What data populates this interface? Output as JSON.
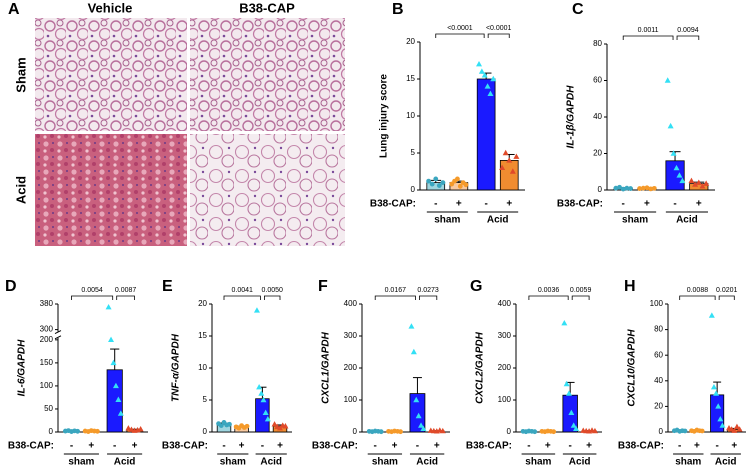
{
  "panel_a": {
    "label": "A",
    "columns": [
      "Vehicle",
      "B38-CAP"
    ],
    "rows": [
      "Sham",
      "Acid"
    ]
  },
  "chart_data": [
    {
      "type": "bar",
      "label": "B",
      "ylabel": "Lung injury score",
      "ylabel_italic": false,
      "xlabel": "B38-CAP:",
      "categories": [
        "-",
        "+",
        "-",
        "+"
      ],
      "groups": [
        "sham",
        "Acid"
      ],
      "values": [
        1,
        1,
        15,
        4
      ],
      "errors": [
        0.3,
        0.2,
        0.8,
        0.8
      ],
      "points": [
        [
          1.2,
          0.8,
          1.5,
          0.6,
          1.0
        ],
        [
          0.8,
          1.2,
          1.5,
          0.5,
          1.0,
          0.7
        ],
        [
          17,
          16,
          15.5,
          14,
          13,
          15
        ],
        [
          3,
          5,
          4,
          2.5,
          4.5
        ]
      ],
      "pvalues": [
        "<0.0001",
        "<0.0001"
      ],
      "colors": [
        "#9fd6e0",
        "#f8c9a0",
        "#1a1aff",
        "#f08c30"
      ],
      "point_colors": [
        "#3aa6bf",
        "#f59a2a",
        "#33e0f5",
        "#e04a2a"
      ],
      "markers": [
        "circle",
        "circle",
        "triangle",
        "triangle"
      ],
      "ylim": [
        0,
        20
      ],
      "yticks": [
        0,
        5,
        10,
        15,
        20
      ]
    },
    {
      "type": "bar",
      "label": "C",
      "ylabel": "IL-1β/GAPDH",
      "ylabel_italic": true,
      "xlabel": "B38-CAP:",
      "categories": [
        "-",
        "+",
        "-",
        "+"
      ],
      "groups": [
        "sham",
        "Acid"
      ],
      "values": [
        1,
        1,
        16,
        3.5
      ],
      "errors": [
        0.3,
        0.3,
        5,
        0.8
      ],
      "points": [
        [
          1,
          1.5,
          0.5,
          1,
          0.8
        ],
        [
          0.8,
          1,
          1.2,
          0.6,
          0.9
        ],
        [
          60,
          35,
          20,
          12,
          8,
          5
        ],
        [
          5,
          3,
          4,
          2,
          3.5
        ]
      ],
      "pvalues": [
        "0.0011",
        "0.0094"
      ],
      "colors": [
        "#9fd6e0",
        "#f8c9a0",
        "#1a1aff",
        "#f08c30"
      ],
      "point_colors": [
        "#3aa6bf",
        "#f59a2a",
        "#33e0f5",
        "#e04a2a"
      ],
      "markers": [
        "circle",
        "circle",
        "triangle",
        "triangle"
      ],
      "ylim": [
        0,
        80
      ],
      "yticks": [
        0,
        20,
        40,
        60,
        80
      ]
    },
    {
      "type": "bar",
      "label": "D",
      "ylabel": "IL-6/GAPDH",
      "ylabel_italic": true,
      "xlabel": "B38-CAP:",
      "categories": [
        "-",
        "+",
        "-",
        "+"
      ],
      "groups": [
        "sham",
        "Acid"
      ],
      "values": [
        2,
        2,
        135,
        5
      ],
      "errors": [
        1,
        1,
        45,
        1
      ],
      "points": [
        [
          2,
          3,
          1,
          2.5,
          1.5
        ],
        [
          2,
          1,
          3,
          2,
          1.5
        ],
        [
          370,
          200,
          150,
          100,
          70,
          40
        ],
        [
          8,
          5,
          3,
          4,
          6
        ]
      ],
      "pvalues": [
        "0.0054",
        "0.0087"
      ],
      "colors": [
        "#9fd6e0",
        "#f8c9a0",
        "#1a1aff",
        "#f08c30"
      ],
      "point_colors": [
        "#3aa6bf",
        "#f59a2a",
        "#33e0f5",
        "#e04a2a"
      ],
      "markers": [
        "circle",
        "circle",
        "triangle",
        "triangle"
      ],
      "ylim": [
        0,
        380
      ],
      "yticks": [
        0,
        50,
        100,
        150,
        200,
        300,
        380
      ],
      "broken_axis": true
    },
    {
      "type": "bar",
      "label": "E",
      "ylabel": "TNF-α/GAPDH",
      "ylabel_italic": true,
      "xlabel": "B38-CAP:",
      "categories": [
        "-",
        "+",
        "-",
        "+"
      ],
      "groups": [
        "sham",
        "Acid"
      ],
      "values": [
        1.2,
        0.8,
        5.2,
        0.9
      ],
      "errors": [
        0.2,
        0.1,
        1.8,
        0.2
      ],
      "points": [
        [
          1.3,
          1.0,
          1.5,
          1.1,
          1.2
        ],
        [
          0.8,
          0.6,
          1.0,
          0.7,
          0.9
        ],
        [
          19,
          7,
          6,
          5,
          3,
          2
        ],
        [
          1.2,
          0.8,
          0.6,
          1.0,
          0.9
        ]
      ],
      "pvalues": [
        "0.0041",
        "0.0050"
      ],
      "colors": [
        "#9fd6e0",
        "#f8c9a0",
        "#1a1aff",
        "#f08c30"
      ],
      "point_colors": [
        "#3aa6bf",
        "#f59a2a",
        "#33e0f5",
        "#e04a2a"
      ],
      "markers": [
        "circle",
        "circle",
        "triangle",
        "triangle"
      ],
      "ylim": [
        0,
        20
      ],
      "yticks": [
        0,
        5,
        10,
        15,
        20
      ]
    },
    {
      "type": "bar",
      "label": "F",
      "ylabel": "CXCL1/GAPDH",
      "ylabel_italic": true,
      "xlabel": "B38-CAP:",
      "categories": [
        "-",
        "+",
        "-",
        "+"
      ],
      "groups": [
        "sham",
        "Acid"
      ],
      "values": [
        2,
        2,
        120,
        3
      ],
      "errors": [
        1,
        1,
        50,
        1
      ],
      "points": [
        [
          2,
          1,
          3,
          2,
          1
        ],
        [
          2,
          1,
          3,
          2,
          1
        ],
        [
          330,
          250,
          100,
          50,
          20,
          10
        ],
        [
          4,
          3,
          2,
          5,
          3
        ]
      ],
      "pvalues": [
        "0.0167",
        "0.0273"
      ],
      "colors": [
        "#9fd6e0",
        "#f8c9a0",
        "#1a1aff",
        "#f08c30"
      ],
      "point_colors": [
        "#3aa6bf",
        "#f59a2a",
        "#33e0f5",
        "#e04a2a"
      ],
      "markers": [
        "circle",
        "circle",
        "triangle",
        "triangle"
      ],
      "ylim": [
        0,
        400
      ],
      "yticks": [
        0,
        100,
        200,
        300,
        400
      ]
    },
    {
      "type": "bar",
      "label": "G",
      "ylabel": "CXCL2/GAPDH",
      "ylabel_italic": true,
      "xlabel": "B38-CAP:",
      "categories": [
        "-",
        "+",
        "-",
        "+"
      ],
      "groups": [
        "sham",
        "Acid"
      ],
      "values": [
        2,
        2,
        115,
        3
      ],
      "errors": [
        1,
        1,
        40,
        1
      ],
      "points": [
        [
          2,
          1,
          3,
          2,
          1
        ],
        [
          2,
          1,
          3,
          2,
          1
        ],
        [
          340,
          150,
          120,
          60,
          20,
          10
        ],
        [
          4,
          3,
          2,
          5,
          3
        ]
      ],
      "pvalues": [
        "0.0036",
        "0.0059"
      ],
      "colors": [
        "#9fd6e0",
        "#f8c9a0",
        "#1a1aff",
        "#f08c30"
      ],
      "point_colors": [
        "#3aa6bf",
        "#f59a2a",
        "#33e0f5",
        "#e04a2a"
      ],
      "markers": [
        "circle",
        "circle",
        "triangle",
        "triangle"
      ],
      "ylim": [
        0,
        400
      ],
      "yticks": [
        0,
        100,
        200,
        300,
        400
      ]
    },
    {
      "type": "bar",
      "label": "H",
      "ylabel": "CXCL10/GAPDH",
      "ylabel_italic": true,
      "xlabel": "B38-CAP:",
      "categories": [
        "-",
        "+",
        "-",
        "+"
      ],
      "groups": [
        "sham",
        "Acid"
      ],
      "values": [
        1,
        1,
        29,
        2
      ],
      "errors": [
        0.3,
        0.3,
        10,
        0.8
      ],
      "points": [
        [
          1,
          1.5,
          0.5,
          1,
          0.8
        ],
        [
          1,
          0.5,
          1.5,
          1,
          0.8
        ],
        [
          91,
          35,
          30,
          20,
          10,
          5
        ],
        [
          3,
          2,
          1,
          4,
          2
        ]
      ],
      "pvalues": [
        "0.0088",
        "0.0201"
      ],
      "colors": [
        "#9fd6e0",
        "#f8c9a0",
        "#1a1aff",
        "#f08c30"
      ],
      "point_colors": [
        "#3aa6bf",
        "#f59a2a",
        "#33e0f5",
        "#e04a2a"
      ],
      "markers": [
        "circle",
        "circle",
        "triangle",
        "triangle"
      ],
      "ylim": [
        0,
        100
      ],
      "yticks": [
        0,
        20,
        40,
        60,
        80,
        100
      ]
    }
  ]
}
